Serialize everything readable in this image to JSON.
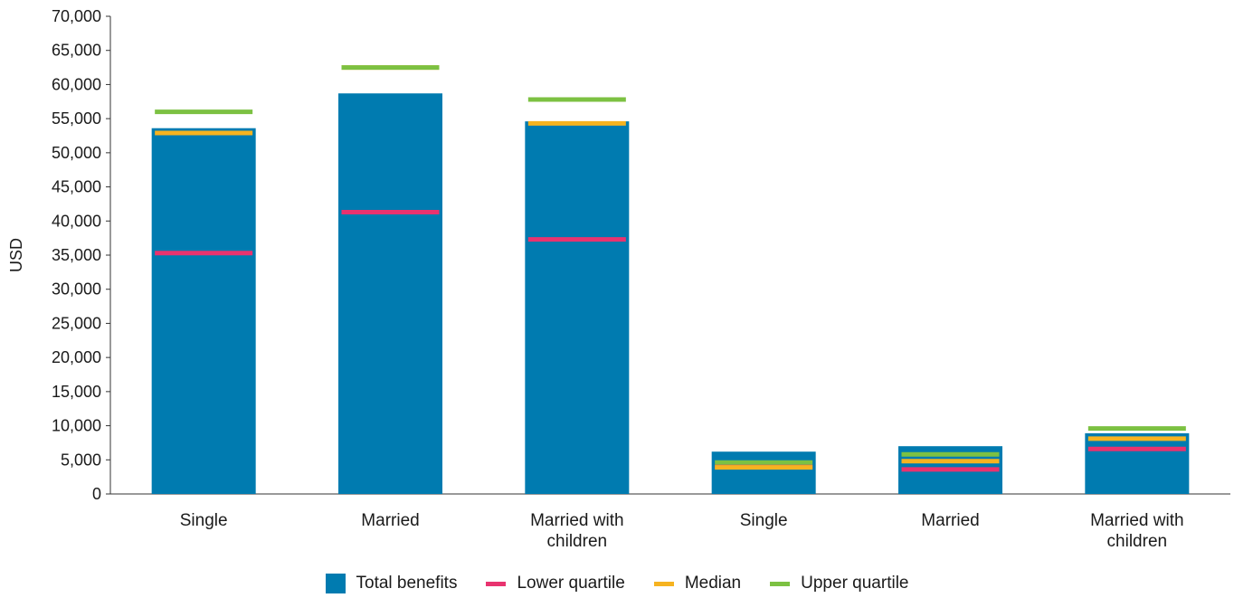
{
  "chart_data": {
    "type": "bar",
    "ylabel": "USD",
    "ylim": [
      0,
      70000
    ],
    "yticks": [
      "0",
      "5,000",
      "10,000",
      "15,000",
      "20,000",
      "25,000",
      "30,000",
      "35,000",
      "40,000",
      "45,000",
      "50,000",
      "55,000",
      "60,000",
      "65,000",
      "70,000"
    ],
    "categories": [
      [
        "Single"
      ],
      [
        "Married"
      ],
      [
        "Married with",
        "children"
      ],
      [
        "Single"
      ],
      [
        "Married"
      ],
      [
        "Married with",
        "children"
      ]
    ],
    "series": [
      {
        "name": "Total benefits",
        "kind": "bar",
        "color": "#007bb0",
        "values": [
          53600,
          58700,
          54600,
          6200,
          7000,
          8900
        ]
      },
      {
        "name": "Lower quartile",
        "kind": "marker",
        "color": "#e8336f",
        "values": [
          35300,
          41300,
          37300,
          4000,
          3600,
          6600
        ]
      },
      {
        "name": "Median",
        "kind": "marker",
        "color": "#f6b320",
        "values": [
          52900,
          62500,
          54300,
          3900,
          4800,
          8100
        ]
      },
      {
        "name": "Upper quartile",
        "kind": "marker",
        "color": "#7cc142",
        "values": [
          56000,
          62500,
          57800,
          4600,
          5800,
          9600
        ]
      }
    ],
    "legend_position": "bottom"
  }
}
